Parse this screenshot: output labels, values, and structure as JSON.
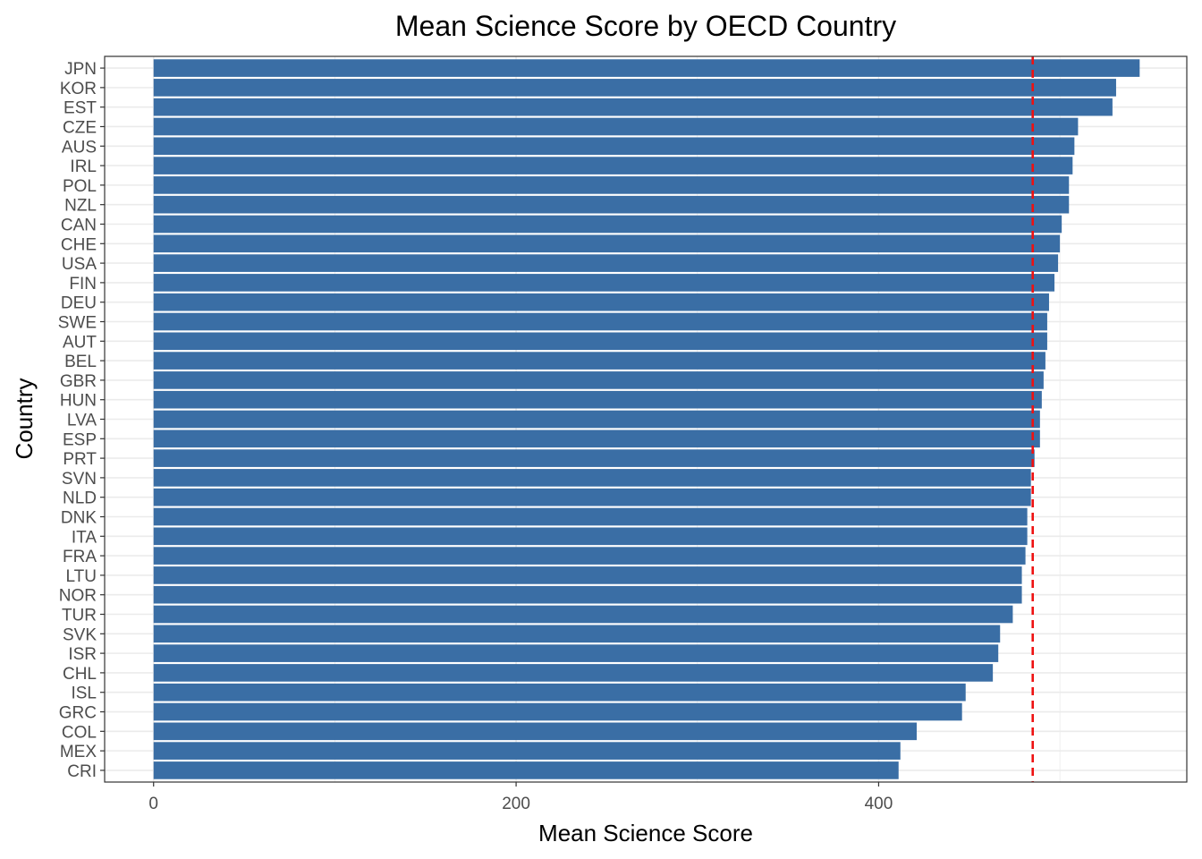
{
  "chart_data": {
    "type": "bar",
    "orientation": "horizontal",
    "title": "Mean Science Score by OECD Country",
    "xlabel": "Mean Science Score",
    "ylabel": "Country",
    "xlim": [
      -27,
      570
    ],
    "xticks": [
      0,
      200,
      400
    ],
    "categories": [
      "JPN",
      "KOR",
      "EST",
      "CZE",
      "AUS",
      "IRL",
      "POL",
      "NZL",
      "CAN",
      "CHE",
      "USA",
      "FIN",
      "DEU",
      "SWE",
      "AUT",
      "BEL",
      "GBR",
      "HUN",
      "LVA",
      "ESP",
      "PRT",
      "SVN",
      "NLD",
      "DNK",
      "ITA",
      "FRA",
      "LTU",
      "NOR",
      "TUR",
      "SVK",
      "ISR",
      "CHL",
      "ISL",
      "GRC",
      "COL",
      "MEX",
      "CRI"
    ],
    "values": [
      544,
      531,
      529,
      510,
      508,
      507,
      505,
      505,
      501,
      500,
      499,
      497,
      494,
      493,
      493,
      492,
      491,
      490,
      489,
      489,
      486,
      484,
      484,
      482,
      482,
      481,
      479,
      479,
      474,
      467,
      466,
      463,
      448,
      446,
      421,
      412,
      411
    ],
    "reference_line": {
      "value": 485
    },
    "grid": true,
    "legend": "none",
    "colors": {
      "bar": "#3A6EA5",
      "reference_line": "#ee1111",
      "grid": "#ebebeb",
      "panel_border": "#333333"
    }
  }
}
